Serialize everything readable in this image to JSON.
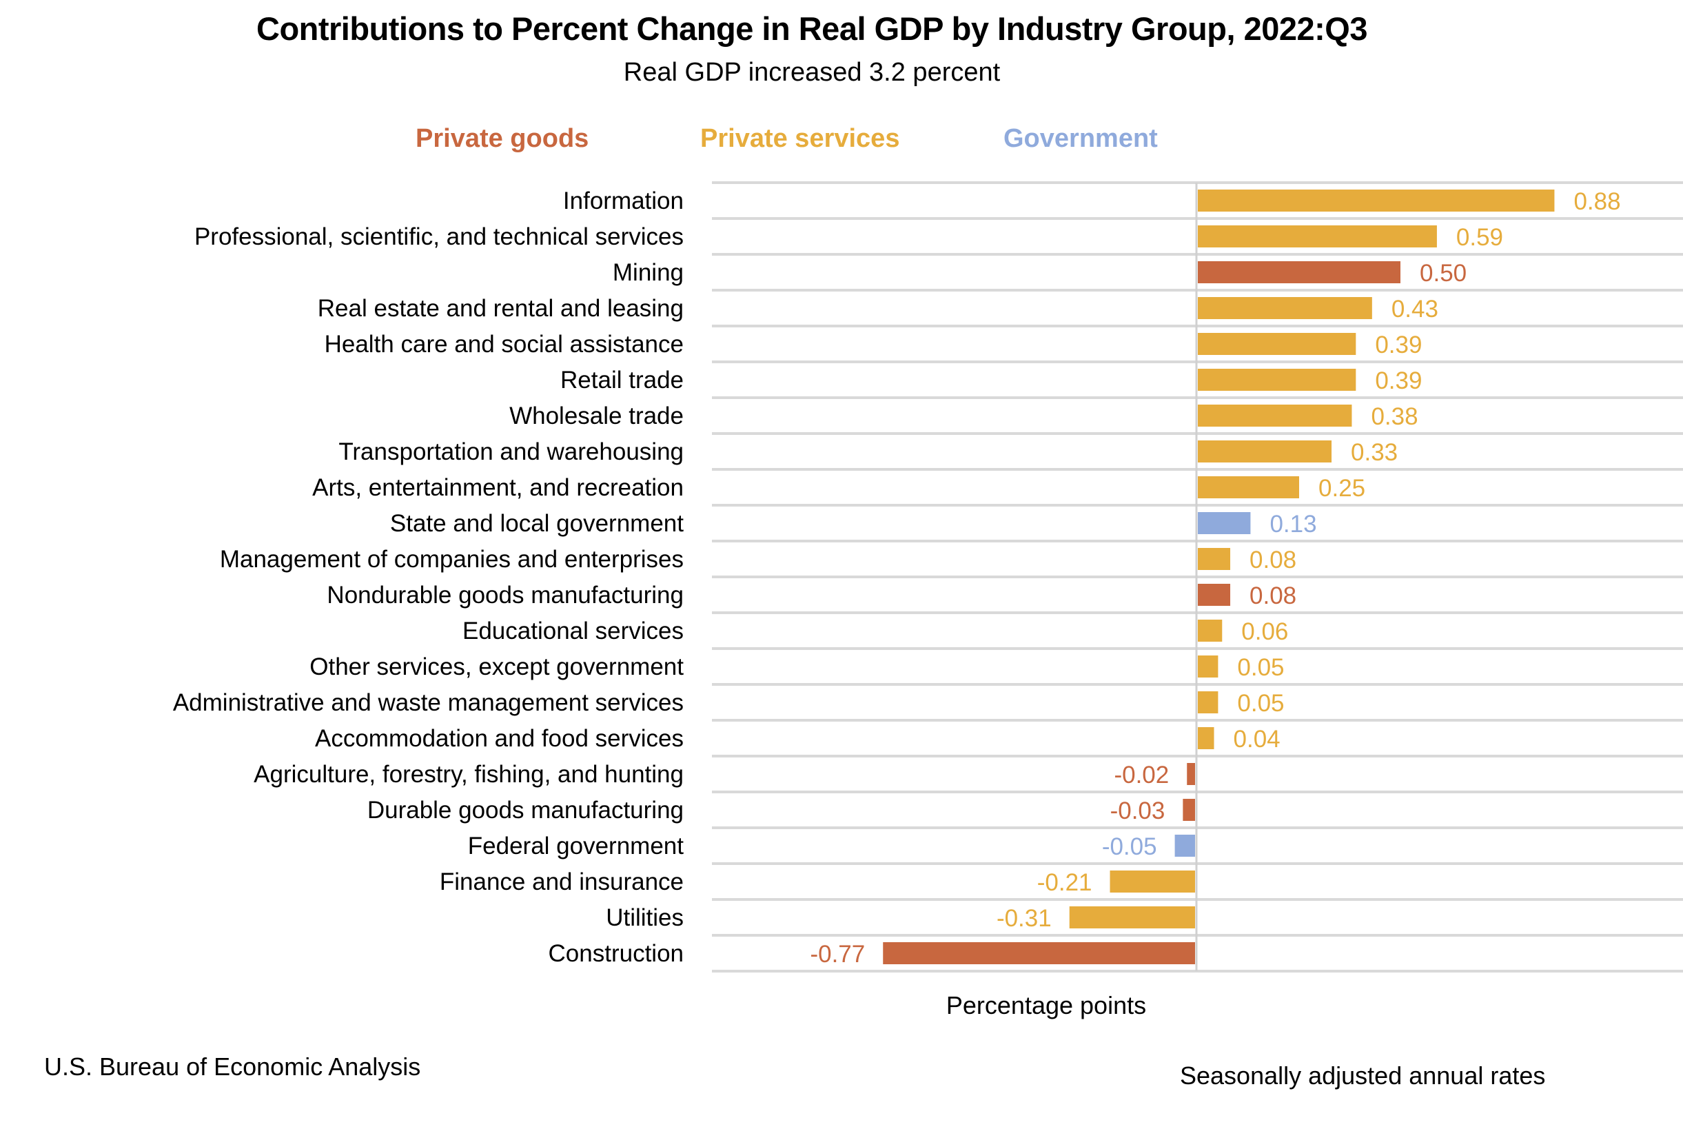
{
  "chart_data": {
    "type": "bar",
    "orientation": "horizontal",
    "title": "Contributions to Percent Change in Real GDP by Industry Group, 2022:Q3",
    "subtitle": "Real GDP increased 3.2 percent",
    "xlabel": "Percentage points",
    "ylabel": "",
    "xlim": [
      -0.77,
      0.88
    ],
    "grid": "horizontal row separators",
    "legend_position": "top",
    "legend": [
      {
        "key": "goods",
        "label": "Private goods",
        "color": "#C8673F"
      },
      {
        "key": "services",
        "label": "Private services",
        "color": "#E6AC3C"
      },
      {
        "key": "government",
        "label": "Government",
        "color": "#8FAADC"
      }
    ],
    "categories": [
      "Information",
      "Professional, scientific, and technical services",
      "Mining",
      "Real estate and rental and leasing",
      "Health care and social assistance",
      "Retail trade",
      "Wholesale trade",
      "Transportation and warehousing",
      "Arts, entertainment, and recreation",
      "State and local government",
      "Management of companies and enterprises",
      "Nondurable goods manufacturing",
      "Educational services",
      "Other services, except government",
      "Administrative and waste management services",
      "Accommodation and food services",
      "Agriculture, forestry, fishing, and hunting",
      "Durable goods manufacturing",
      "Federal government",
      "Finance and insurance",
      "Utilities",
      "Construction"
    ],
    "values": [
      0.88,
      0.59,
      0.5,
      0.43,
      0.39,
      0.39,
      0.38,
      0.33,
      0.25,
      0.13,
      0.08,
      0.08,
      0.06,
      0.05,
      0.05,
      0.04,
      -0.02,
      -0.03,
      -0.05,
      -0.21,
      -0.31,
      -0.77
    ],
    "groups": [
      "services",
      "services",
      "goods",
      "services",
      "services",
      "services",
      "services",
      "services",
      "services",
      "government",
      "services",
      "goods",
      "services",
      "services",
      "services",
      "services",
      "goods",
      "goods",
      "government",
      "services",
      "services",
      "goods"
    ],
    "value_labels": [
      "0.88",
      "0.59",
      "0.50",
      "0.43",
      "0.39",
      "0.39",
      "0.38",
      "0.33",
      "0.25",
      "0.13",
      "0.08",
      "0.08",
      "0.06",
      "0.05",
      "0.05",
      "0.04",
      "-0.02",
      "-0.03",
      "-0.05",
      "-0.21",
      "-0.31",
      "-0.77"
    ]
  },
  "footer": {
    "source": "U.S. Bureau of Economic Analysis",
    "note": "Seasonally adjusted annual rates"
  },
  "colors": {
    "gridline": "#D9D9D9",
    "axis": "#D0D0D0",
    "text": "#000000"
  }
}
